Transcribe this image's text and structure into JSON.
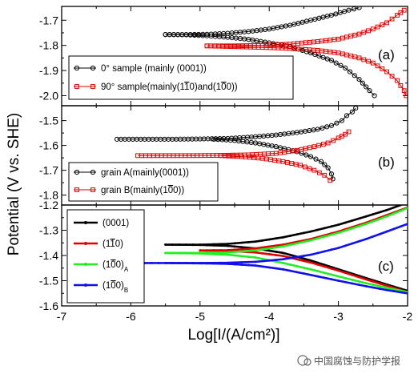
{
  "figure": {
    "xlabel": "Log[I/(A/cm²)]",
    "ylabel": "Potential (V vs. SHE)",
    "watermark": "中国腐蚀与防护学报"
  },
  "chart_data": [
    {
      "type": "line",
      "panel": "(a)",
      "xlim": [
        -7,
        -2
      ],
      "ylim": [
        -2.04,
        -1.645
      ],
      "yticks": [
        -2.0,
        -1.9,
        -1.8,
        -1.7
      ],
      "legend_position": "bottom-left",
      "series": [
        {
          "name": "0° sample (mainly (0001))",
          "color": "#000000",
          "marker": "circle",
          "anodic": [
            [
              -5.5,
              -1.757
            ],
            [
              -5.2,
              -1.757
            ],
            [
              -4.9,
              -1.756
            ],
            [
              -4.6,
              -1.752
            ],
            [
              -4.3,
              -1.745
            ],
            [
              -4.0,
              -1.735
            ],
            [
              -3.7,
              -1.72
            ],
            [
              -3.4,
              -1.7
            ],
            [
              -3.1,
              -1.68
            ],
            [
              -2.85,
              -1.66
            ],
            [
              -2.7,
              -1.65
            ]
          ],
          "cathodic": [
            [
              -5.5,
              -1.757
            ],
            [
              -5.2,
              -1.758
            ],
            [
              -4.9,
              -1.762
            ],
            [
              -4.6,
              -1.768
            ],
            [
              -4.3,
              -1.776
            ],
            [
              -4.0,
              -1.79
            ],
            [
              -3.7,
              -1.805
            ],
            [
              -3.4,
              -1.83
            ],
            [
              -3.1,
              -1.86
            ],
            [
              -2.9,
              -1.89
            ],
            [
              -2.7,
              -1.935
            ],
            [
              -2.55,
              -1.98
            ],
            [
              -2.48,
              -2.0
            ]
          ]
        },
        {
          "name": "90° sample(mainly(11-20)and(10-10))",
          "color": "#e00000",
          "marker": "square",
          "anodic": [
            [
              -4.9,
              -1.802
            ],
            [
              -4.5,
              -1.802
            ],
            [
              -4.1,
              -1.8
            ],
            [
              -3.7,
              -1.795
            ],
            [
              -3.3,
              -1.785
            ],
            [
              -3.0,
              -1.775
            ],
            [
              -2.7,
              -1.755
            ],
            [
              -2.5,
              -1.735
            ],
            [
              -2.3,
              -1.71
            ],
            [
              -2.15,
              -1.68
            ],
            [
              -2.05,
              -1.66
            ]
          ],
          "cathodic": [
            [
              -4.9,
              -1.802
            ],
            [
              -4.5,
              -1.805
            ],
            [
              -4.1,
              -1.808
            ],
            [
              -3.7,
              -1.812
            ],
            [
              -3.3,
              -1.82
            ],
            [
              -3.0,
              -1.83
            ],
            [
              -2.7,
              -1.85
            ],
            [
              -2.5,
              -1.87
            ],
            [
              -2.3,
              -1.905
            ],
            [
              -2.15,
              -1.94
            ],
            [
              -2.05,
              -1.98
            ],
            [
              -2.02,
              -2.0
            ]
          ]
        }
      ]
    },
    {
      "type": "line",
      "panel": "(b)",
      "xlim": [
        -7,
        -2
      ],
      "ylim": [
        -1.84,
        -1.44
      ],
      "yticks": [
        -1.8,
        -1.7,
        -1.6,
        -1.5
      ],
      "legend_position": "bottom-left",
      "series": [
        {
          "name": "grain A(mainly(0001))",
          "color": "#000000",
          "marker": "circle",
          "anodic": [
            [
              -6.2,
              -1.575
            ],
            [
              -5.8,
              -1.575
            ],
            [
              -5.4,
              -1.575
            ],
            [
              -5.0,
              -1.574
            ],
            [
              -4.6,
              -1.572
            ],
            [
              -4.2,
              -1.565
            ],
            [
              -3.9,
              -1.558
            ],
            [
              -3.6,
              -1.548
            ],
            [
              -3.3,
              -1.535
            ],
            [
              -3.1,
              -1.52
            ],
            [
              -2.95,
              -1.5
            ],
            [
              -2.88,
              -1.48
            ],
            [
              -2.8,
              -1.465
            ],
            [
              -2.75,
              -1.45
            ]
          ],
          "cathodic": [
            [
              -4.8,
              -1.575
            ],
            [
              -4.5,
              -1.58
            ],
            [
              -4.2,
              -1.59
            ],
            [
              -3.9,
              -1.605
            ],
            [
              -3.6,
              -1.625
            ],
            [
              -3.4,
              -1.645
            ],
            [
              -3.25,
              -1.665
            ],
            [
              -3.15,
              -1.69
            ],
            [
              -3.1,
              -1.715
            ],
            [
              -3.08,
              -1.735
            ]
          ]
        },
        {
          "name": "grain B(mainly(10-10))",
          "color": "#e00000",
          "marker": "square",
          "anodic": [
            [
              -5.9,
              -1.641
            ],
            [
              -5.5,
              -1.641
            ],
            [
              -5.1,
              -1.641
            ],
            [
              -4.7,
              -1.64
            ],
            [
              -4.3,
              -1.638
            ],
            [
              -3.9,
              -1.632
            ],
            [
              -3.6,
              -1.62
            ],
            [
              -3.35,
              -1.605
            ],
            [
              -3.15,
              -1.59
            ],
            [
              -3.0,
              -1.57
            ],
            [
              -2.9,
              -1.555
            ],
            [
              -2.85,
              -1.545
            ]
          ],
          "cathodic": [
            [
              -4.7,
              -1.641
            ],
            [
              -4.4,
              -1.645
            ],
            [
              -4.1,
              -1.652
            ],
            [
              -3.8,
              -1.665
            ],
            [
              -3.55,
              -1.68
            ],
            [
              -3.35,
              -1.7
            ],
            [
              -3.2,
              -1.72
            ],
            [
              -3.12,
              -1.74
            ]
          ]
        }
      ]
    },
    {
      "type": "line",
      "panel": "(c)",
      "xlim": [
        -7,
        -2
      ],
      "ylim": [
        -1.6,
        -1.2
      ],
      "yticks": [
        -1.6,
        -1.5,
        -1.4,
        -1.3,
        -1.2
      ],
      "legend_position": "top-left",
      "series": [
        {
          "name": "(0001)",
          "color": "#000000",
          "anodic": [
            [
              -5.5,
              -1.357
            ],
            [
              -5.0,
              -1.357
            ],
            [
              -4.6,
              -1.354
            ],
            [
              -4.2,
              -1.345
            ],
            [
              -3.8,
              -1.328
            ],
            [
              -3.4,
              -1.305
            ],
            [
              -3.0,
              -1.278
            ],
            [
              -2.6,
              -1.245
            ],
            [
              -2.3,
              -1.22
            ],
            [
              -2.1,
              -1.2
            ]
          ],
          "cathodic": [
            [
              -5.5,
              -1.357
            ],
            [
              -5.0,
              -1.358
            ],
            [
              -4.6,
              -1.362
            ],
            [
              -4.2,
              -1.372
            ],
            [
              -3.8,
              -1.39
            ],
            [
              -3.4,
              -1.42
            ],
            [
              -3.0,
              -1.455
            ],
            [
              -2.6,
              -1.49
            ],
            [
              -2.3,
              -1.515
            ],
            [
              -2.0,
              -1.54
            ]
          ]
        },
        {
          "name": "(11-20)",
          "color": "#e00000",
          "anodic": [
            [
              -5.0,
              -1.38
            ],
            [
              -4.6,
              -1.379
            ],
            [
              -4.2,
              -1.372
            ],
            [
              -3.8,
              -1.357
            ],
            [
              -3.4,
              -1.335
            ],
            [
              -3.0,
              -1.305
            ],
            [
              -2.6,
              -1.27
            ],
            [
              -2.3,
              -1.24
            ],
            [
              -2.0,
              -1.21
            ]
          ],
          "cathodic": [
            [
              -5.0,
              -1.38
            ],
            [
              -4.6,
              -1.382
            ],
            [
              -4.2,
              -1.388
            ],
            [
              -3.8,
              -1.402
            ],
            [
              -3.4,
              -1.428
            ],
            [
              -3.0,
              -1.46
            ],
            [
              -2.6,
              -1.495
            ],
            [
              -2.3,
              -1.52
            ],
            [
              -2.0,
              -1.545
            ]
          ]
        },
        {
          "name": "(10-10)A",
          "color": "#22ee22",
          "anodic": [
            [
              -5.5,
              -1.39
            ],
            [
              -5.0,
              -1.39
            ],
            [
              -4.6,
              -1.388
            ],
            [
              -4.2,
              -1.38
            ],
            [
              -3.8,
              -1.364
            ],
            [
              -3.4,
              -1.34
            ],
            [
              -3.0,
              -1.31
            ],
            [
              -2.6,
              -1.275
            ],
            [
              -2.3,
              -1.245
            ],
            [
              -2.0,
              -1.212
            ]
          ],
          "cathodic": [
            [
              -5.5,
              -1.39
            ],
            [
              -5.0,
              -1.392
            ],
            [
              -4.6,
              -1.397
            ],
            [
              -4.2,
              -1.408
            ],
            [
              -3.8,
              -1.43
            ],
            [
              -3.4,
              -1.455
            ],
            [
              -3.0,
              -1.483
            ],
            [
              -2.6,
              -1.51
            ],
            [
              -2.3,
              -1.528
            ],
            [
              -2.0,
              -1.545
            ]
          ]
        },
        {
          "name": "(10-10)B",
          "color": "#1010ee",
          "anodic": [
            [
              -6.0,
              -1.43
            ],
            [
              -5.5,
              -1.43
            ],
            [
              -5.0,
              -1.43
            ],
            [
              -4.6,
              -1.429
            ],
            [
              -4.2,
              -1.425
            ],
            [
              -3.8,
              -1.415
            ],
            [
              -3.4,
              -1.397
            ],
            [
              -3.0,
              -1.37
            ],
            [
              -2.6,
              -1.335
            ],
            [
              -2.3,
              -1.305
            ],
            [
              -2.0,
              -1.275
            ]
          ],
          "cathodic": [
            [
              -5.5,
              -1.43
            ],
            [
              -5.0,
              -1.431
            ],
            [
              -4.6,
              -1.433
            ],
            [
              -4.2,
              -1.44
            ],
            [
              -3.8,
              -1.455
            ],
            [
              -3.4,
              -1.477
            ],
            [
              -3.0,
              -1.5
            ],
            [
              -2.6,
              -1.522
            ],
            [
              -2.3,
              -1.537
            ],
            [
              -2.0,
              -1.55
            ]
          ]
        }
      ]
    }
  ]
}
